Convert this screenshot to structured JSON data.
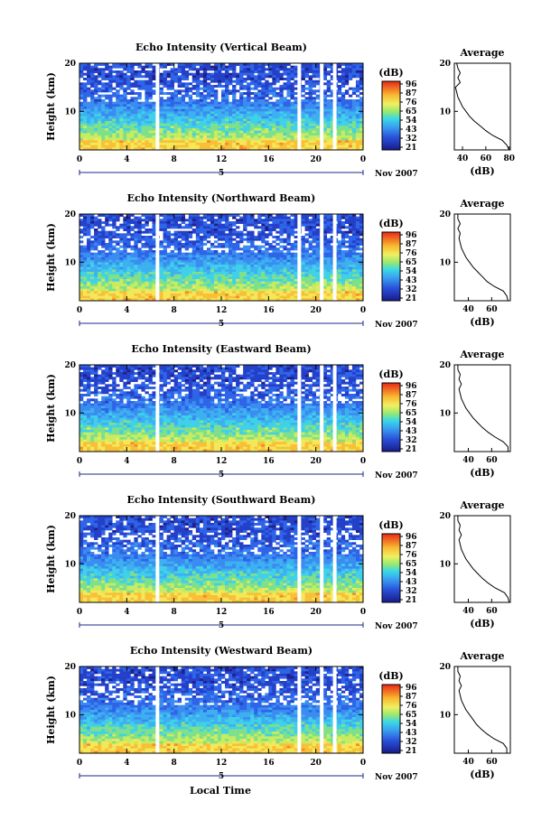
{
  "figure": {
    "time_label": "Local Time",
    "date_label": "Nov 2007",
    "colorbar_unit": "(dB)",
    "colorbar_ticks": [
      "96",
      "87",
      "76",
      "65",
      "54",
      "43",
      "32",
      "21"
    ],
    "height_label": "Height (km)",
    "avg_title": "Average",
    "avg_xlabel": "(dB)"
  },
  "chart_data": [
    {
      "type": "heatmap",
      "title": "Echo Intensity (Vertical Beam)",
      "x_ticks": [
        "0",
        "4",
        "8",
        "12",
        "16",
        "20",
        "0"
      ],
      "x_range": [
        0,
        24
      ],
      "day_marker": "5",
      "y_ticks": [
        "20",
        "10"
      ],
      "y_range": [
        2,
        20
      ],
      "cbar_ticks": [
        "96",
        "87",
        "76",
        "65",
        "54",
        "43",
        "32",
        "21"
      ],
      "gaps_hours": [
        6.6,
        18.6,
        20.5,
        21.6
      ],
      "profile": {
        "x_ticks": [
          "40",
          "60",
          "80"
        ],
        "x_range": [
          33,
          81
        ],
        "heights_km": [
          2,
          3,
          4,
          5,
          6,
          7,
          8,
          9,
          10,
          11,
          12,
          13,
          14,
          15,
          16,
          17,
          18,
          19,
          20
        ],
        "avg_db": [
          80,
          78,
          74,
          66,
          60,
          55,
          50,
          46,
          43,
          40,
          38,
          36,
          35,
          34,
          38,
          36,
          38,
          36,
          35
        ]
      }
    },
    {
      "type": "heatmap",
      "title": "Echo Intensity (Northward Beam)",
      "x_ticks": [
        "0",
        "4",
        "8",
        "12",
        "16",
        "20",
        "0"
      ],
      "x_range": [
        0,
        24
      ],
      "day_marker": "5",
      "y_ticks": [
        "20",
        "10"
      ],
      "y_range": [
        2,
        20
      ],
      "cbar_ticks": [
        "96",
        "87",
        "76",
        "65",
        "54",
        "43",
        "32",
        "21"
      ],
      "gaps_hours": [
        6.6,
        18.6,
        20.5,
        21.6
      ],
      "profile": {
        "x_ticks": [
          "40",
          "60"
        ],
        "x_range": [
          28,
          76
        ],
        "heights_km": [
          2,
          3,
          4,
          5,
          6,
          7,
          8,
          9,
          10,
          11,
          12,
          13,
          14,
          15,
          16,
          17,
          18,
          19,
          20
        ],
        "avg_db": [
          74,
          73,
          70,
          62,
          56,
          52,
          48,
          44,
          41,
          38,
          36,
          34,
          33,
          32,
          33,
          31,
          33,
          31,
          31
        ]
      }
    },
    {
      "type": "heatmap",
      "title": "Echo Intensity (Eastward Beam)",
      "x_ticks": [
        "0",
        "4",
        "8",
        "12",
        "16",
        "20",
        "0"
      ],
      "x_range": [
        0,
        24
      ],
      "day_marker": "5",
      "y_ticks": [
        "20",
        "10"
      ],
      "y_range": [
        2,
        20
      ],
      "cbar_ticks": [
        "96",
        "87",
        "76",
        "65",
        "54",
        "43",
        "32",
        "21"
      ],
      "gaps_hours": [
        6.6,
        18.6,
        20.5,
        21.6
      ],
      "profile": {
        "x_ticks": [
          "40",
          "60"
        ],
        "x_range": [
          28,
          76
        ],
        "heights_km": [
          2,
          3,
          4,
          5,
          6,
          7,
          8,
          9,
          10,
          11,
          12,
          13,
          14,
          15,
          16,
          17,
          18,
          19,
          20
        ],
        "avg_db": [
          74,
          74,
          70,
          63,
          57,
          52,
          48,
          44,
          41,
          38,
          36,
          34,
          33,
          32,
          34,
          32,
          33,
          31,
          31
        ]
      }
    },
    {
      "type": "heatmap",
      "title": "Echo Intensity (Southward Beam)",
      "x_ticks": [
        "0",
        "4",
        "8",
        "12",
        "16",
        "20",
        "0"
      ],
      "x_range": [
        0,
        24
      ],
      "day_marker": "5",
      "y_ticks": [
        "20",
        "10"
      ],
      "y_range": [
        2,
        20
      ],
      "cbar_ticks": [
        "96",
        "87",
        "76",
        "65",
        "54",
        "43",
        "32",
        "21"
      ],
      "gaps_hours": [
        6.6,
        18.6,
        20.5,
        21.6
      ],
      "profile": {
        "x_ticks": [
          "40",
          "60"
        ],
        "x_range": [
          28,
          76
        ],
        "heights_km": [
          2,
          3,
          4,
          5,
          6,
          7,
          8,
          9,
          10,
          11,
          12,
          13,
          14,
          15,
          16,
          17,
          18,
          19,
          20
        ],
        "avg_db": [
          75,
          74,
          71,
          63,
          57,
          52,
          48,
          44,
          41,
          38,
          36,
          34,
          33,
          32,
          34,
          32,
          33,
          31,
          31
        ]
      }
    },
    {
      "type": "heatmap",
      "title": "Echo Intensity (Westward Beam)",
      "x_ticks": [
        "0",
        "4",
        "8",
        "12",
        "16",
        "20",
        "0"
      ],
      "x_range": [
        0,
        24
      ],
      "day_marker": "5",
      "y_ticks": [
        "20",
        "10"
      ],
      "y_range": [
        2,
        20
      ],
      "cbar_ticks": [
        "96",
        "87",
        "76",
        "65",
        "54",
        "43",
        "32",
        "21"
      ],
      "gaps_hours": [
        6.6,
        18.6,
        20.5,
        21.6
      ],
      "profile": {
        "x_ticks": [
          "40",
          "60"
        ],
        "x_range": [
          28,
          76
        ],
        "heights_km": [
          2,
          3,
          4,
          5,
          6,
          7,
          8,
          9,
          10,
          11,
          12,
          13,
          14,
          15,
          16,
          17,
          18,
          19,
          20
        ],
        "avg_db": [
          73,
          73,
          70,
          62,
          56,
          51,
          47,
          44,
          41,
          38,
          36,
          34,
          33,
          32,
          34,
          32,
          33,
          31,
          31
        ]
      }
    }
  ]
}
